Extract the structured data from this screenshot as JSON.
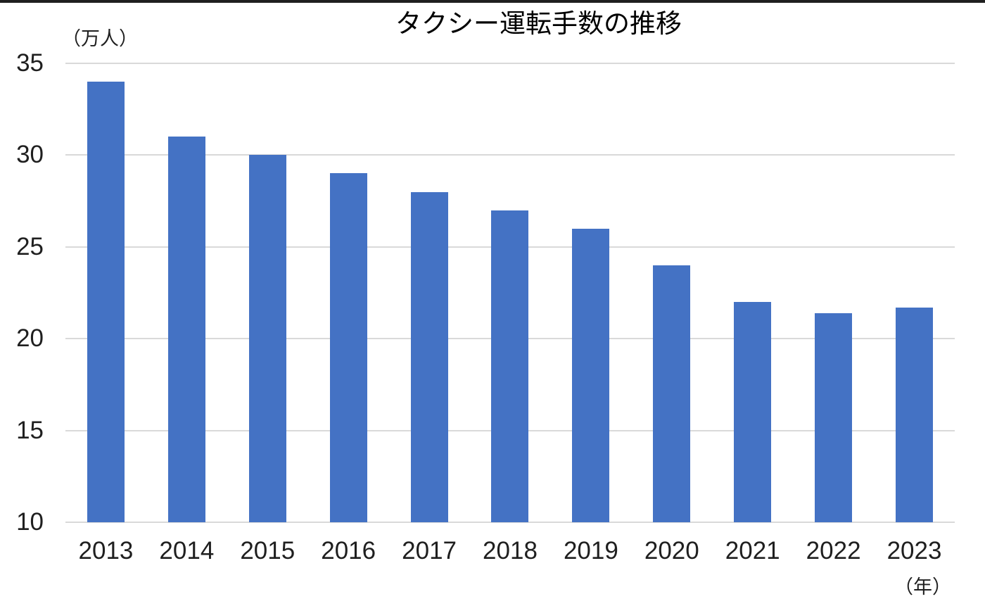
{
  "chart_data": {
    "type": "bar",
    "title": "タクシー運転手数の推移",
    "y_unit_label": "（万人）",
    "x_unit_label": "（年）",
    "xlabel": "年",
    "ylabel": "万人",
    "categories": [
      "2013",
      "2014",
      "2015",
      "2016",
      "2017",
      "2018",
      "2019",
      "2020",
      "2021",
      "2022",
      "2023"
    ],
    "values": [
      34,
      31,
      30,
      29,
      28,
      27,
      26,
      24,
      22,
      21.4,
      21.7
    ],
    "y_ticks": [
      35,
      30,
      25,
      20,
      15,
      10
    ],
    "ylim": [
      10,
      35
    ],
    "grid": "horizontal",
    "legend": "none",
    "bar_color": "#4472C4",
    "gridline_color": "#D9D9D9",
    "text_color": "#1f1f1f"
  }
}
